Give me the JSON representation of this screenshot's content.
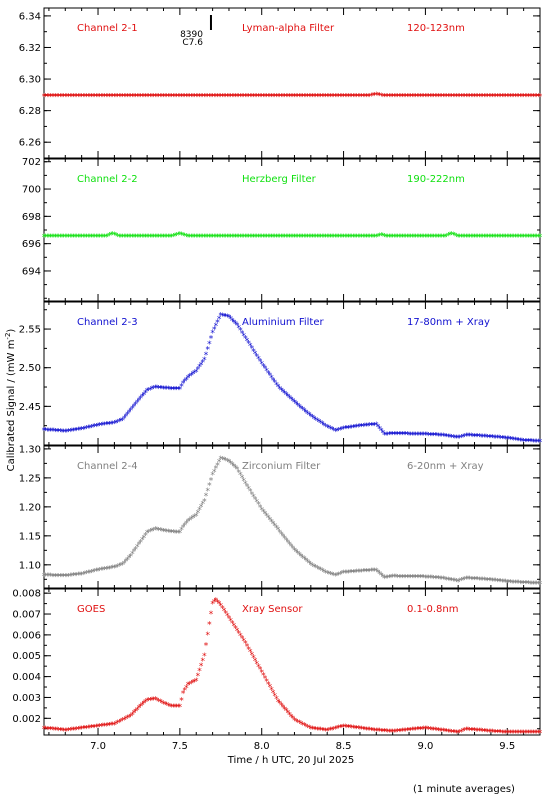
{
  "chart_data": {
    "type": "scatter",
    "xlabel": "Time / h UTC, 20 Jul 2025",
    "ylabel": "Calibrated Signal / (mW m",
    "ylabel_sup": "-2",
    "ylabel_close": ")",
    "footnote": "(1 minute averages)",
    "xlim": [
      6.67,
      9.7
    ],
    "x_ticks": [
      7.0,
      7.5,
      8.0,
      8.5,
      9.0,
      9.5
    ],
    "x_tick_labels": [
      "7.0",
      "7.5",
      "8.0",
      "8.5",
      "9.0",
      "9.5"
    ],
    "marker": "*",
    "marker_annotation": {
      "x": 7.69,
      "lines": [
        "8390",
        "C7.6"
      ]
    },
    "panels": [
      {
        "name": "Channel 2-1",
        "filter": "Lyman-alpha Filter",
        "band": "120-123nm",
        "color": "#e01010",
        "ylim": [
          6.25,
          6.345
        ],
        "yticks": [
          6.26,
          6.28,
          6.3,
          6.32,
          6.34
        ],
        "ytick_labels": [
          "6.26",
          "6.28",
          "6.30",
          "6.32",
          "6.34"
        ],
        "points": [
          [
            6.67,
            6.289
          ],
          [
            7.0,
            6.289
          ],
          [
            7.5,
            6.289
          ],
          [
            8.0,
            6.289
          ],
          [
            8.5,
            6.289
          ],
          [
            8.65,
            6.289
          ],
          [
            8.7,
            6.29
          ],
          [
            8.75,
            6.289
          ],
          [
            9.0,
            6.289
          ],
          [
            9.5,
            6.289
          ],
          [
            9.7,
            6.289
          ]
        ]
      },
      {
        "name": "Channel 2-2",
        "filter": "Herzberg Filter",
        "band": "190-222nm",
        "color": "#10e010",
        "ylim": [
          691.8,
          702.2
        ],
        "yticks": [
          694,
          696,
          698,
          700,
          702
        ],
        "ytick_labels": [
          "694",
          "696",
          "698",
          "700",
          "702"
        ],
        "points": [
          [
            6.67,
            696.5
          ],
          [
            7.05,
            696.5
          ],
          [
            7.09,
            696.7
          ],
          [
            7.13,
            696.5
          ],
          [
            7.45,
            696.5
          ],
          [
            7.5,
            696.7
          ],
          [
            7.55,
            696.5
          ],
          [
            8.7,
            696.5
          ],
          [
            8.73,
            696.6
          ],
          [
            8.76,
            696.5
          ],
          [
            9.12,
            696.5
          ],
          [
            9.16,
            696.7
          ],
          [
            9.2,
            696.5
          ],
          [
            9.7,
            696.5
          ]
        ]
      },
      {
        "name": "Channel 2-3",
        "filter": "Aluminium Filter",
        "band": "17-80nm + Xray",
        "color": "#1010d0",
        "ylim": [
          2.4,
          2.585
        ],
        "yticks": [
          2.45,
          2.5,
          2.55
        ],
        "ytick_labels": [
          "2.45",
          "2.50",
          "2.55"
        ],
        "points": [
          [
            6.67,
            2.419
          ],
          [
            6.8,
            2.417
          ],
          [
            6.9,
            2.42
          ],
          [
            7.0,
            2.425
          ],
          [
            7.1,
            2.428
          ],
          [
            7.15,
            2.432
          ],
          [
            7.2,
            2.445
          ],
          [
            7.25,
            2.458
          ],
          [
            7.3,
            2.47
          ],
          [
            7.35,
            2.474
          ],
          [
            7.4,
            2.473
          ],
          [
            7.45,
            2.472
          ],
          [
            7.5,
            2.472
          ],
          [
            7.52,
            2.48
          ],
          [
            7.55,
            2.487
          ],
          [
            7.6,
            2.495
          ],
          [
            7.65,
            2.51
          ],
          [
            7.7,
            2.545
          ],
          [
            7.75,
            2.568
          ],
          [
            7.8,
            2.565
          ],
          [
            7.85,
            2.555
          ],
          [
            7.9,
            2.538
          ],
          [
            8.0,
            2.505
          ],
          [
            8.1,
            2.475
          ],
          [
            8.2,
            2.455
          ],
          [
            8.3,
            2.437
          ],
          [
            8.4,
            2.423
          ],
          [
            8.45,
            2.418
          ],
          [
            8.5,
            2.421
          ],
          [
            8.6,
            2.424
          ],
          [
            8.7,
            2.426
          ],
          [
            8.75,
            2.413
          ],
          [
            8.8,
            2.414
          ],
          [
            9.0,
            2.413
          ],
          [
            9.1,
            2.412
          ],
          [
            9.2,
            2.409
          ],
          [
            9.25,
            2.412
          ],
          [
            9.4,
            2.41
          ],
          [
            9.5,
            2.408
          ],
          [
            9.6,
            2.405
          ],
          [
            9.7,
            2.404
          ]
        ]
      },
      {
        "name": "Channel 2-4",
        "filter": "Zirconium Filter",
        "band": "6-20nm + Xray",
        "color": "#808080",
        "ylim": [
          1.06,
          1.305
        ],
        "yticks": [
          1.1,
          1.15,
          1.2,
          1.25,
          1.3
        ],
        "ytick_labels": [
          "1.10",
          "1.15",
          "1.20",
          "1.25",
          "1.30"
        ],
        "points": [
          [
            6.67,
            1.081
          ],
          [
            6.8,
            1.08
          ],
          [
            6.9,
            1.083
          ],
          [
            7.0,
            1.09
          ],
          [
            7.1,
            1.095
          ],
          [
            7.15,
            1.1
          ],
          [
            7.2,
            1.115
          ],
          [
            7.25,
            1.135
          ],
          [
            7.3,
            1.155
          ],
          [
            7.35,
            1.161
          ],
          [
            7.4,
            1.158
          ],
          [
            7.45,
            1.156
          ],
          [
            7.5,
            1.155
          ],
          [
            7.52,
            1.165
          ],
          [
            7.55,
            1.175
          ],
          [
            7.6,
            1.185
          ],
          [
            7.65,
            1.21
          ],
          [
            7.7,
            1.255
          ],
          [
            7.75,
            1.283
          ],
          [
            7.8,
            1.278
          ],
          [
            7.85,
            1.265
          ],
          [
            7.9,
            1.24
          ],
          [
            8.0,
            1.195
          ],
          [
            8.1,
            1.16
          ],
          [
            8.2,
            1.125
          ],
          [
            8.3,
            1.1
          ],
          [
            8.4,
            1.085
          ],
          [
            8.45,
            1.081
          ],
          [
            8.5,
            1.086
          ],
          [
            8.6,
            1.088
          ],
          [
            8.7,
            1.09
          ],
          [
            8.75,
            1.077
          ],
          [
            8.8,
            1.079
          ],
          [
            9.0,
            1.078
          ],
          [
            9.1,
            1.076
          ],
          [
            9.2,
            1.071
          ],
          [
            9.25,
            1.076
          ],
          [
            9.4,
            1.073
          ],
          [
            9.5,
            1.07
          ],
          [
            9.6,
            1.068
          ],
          [
            9.7,
            1.067
          ]
        ]
      },
      {
        "name": "GOES",
        "filter": "Xray Sensor",
        "band": "0.1-0.8nm",
        "color": "#e01010",
        "ylim": [
          0.0012,
          0.0082
        ],
        "yticks": [
          0.002,
          0.003,
          0.004,
          0.005,
          0.006,
          0.007,
          0.008
        ],
        "ytick_labels": [
          "0.002",
          "0.003",
          "0.004",
          "0.005",
          "0.006",
          "0.007",
          "0.008"
        ],
        "points": [
          [
            6.67,
            0.0015
          ],
          [
            6.8,
            0.0014
          ],
          [
            6.9,
            0.0015
          ],
          [
            7.0,
            0.0016
          ],
          [
            7.1,
            0.0017
          ],
          [
            7.2,
            0.0021
          ],
          [
            7.25,
            0.0025
          ],
          [
            7.3,
            0.00285
          ],
          [
            7.35,
            0.0029
          ],
          [
            7.4,
            0.0027
          ],
          [
            7.45,
            0.00255
          ],
          [
            7.5,
            0.00255
          ],
          [
            7.52,
            0.0032
          ],
          [
            7.55,
            0.0036
          ],
          [
            7.6,
            0.0038
          ],
          [
            7.65,
            0.005
          ],
          [
            7.7,
            0.0075
          ],
          [
            7.72,
            0.00765
          ],
          [
            7.75,
            0.0074
          ],
          [
            7.8,
            0.0068
          ],
          [
            7.9,
            0.0056
          ],
          [
            8.0,
            0.0042
          ],
          [
            8.1,
            0.0028
          ],
          [
            8.2,
            0.0019
          ],
          [
            8.3,
            0.0015
          ],
          [
            8.4,
            0.0014
          ],
          [
            8.5,
            0.0016
          ],
          [
            8.6,
            0.0015
          ],
          [
            8.7,
            0.0014
          ],
          [
            8.8,
            0.00135
          ],
          [
            9.0,
            0.0015
          ],
          [
            9.1,
            0.0014
          ],
          [
            9.2,
            0.0013
          ],
          [
            9.25,
            0.00145
          ],
          [
            9.4,
            0.00135
          ],
          [
            9.5,
            0.0013
          ],
          [
            9.7,
            0.0013
          ]
        ]
      }
    ]
  }
}
